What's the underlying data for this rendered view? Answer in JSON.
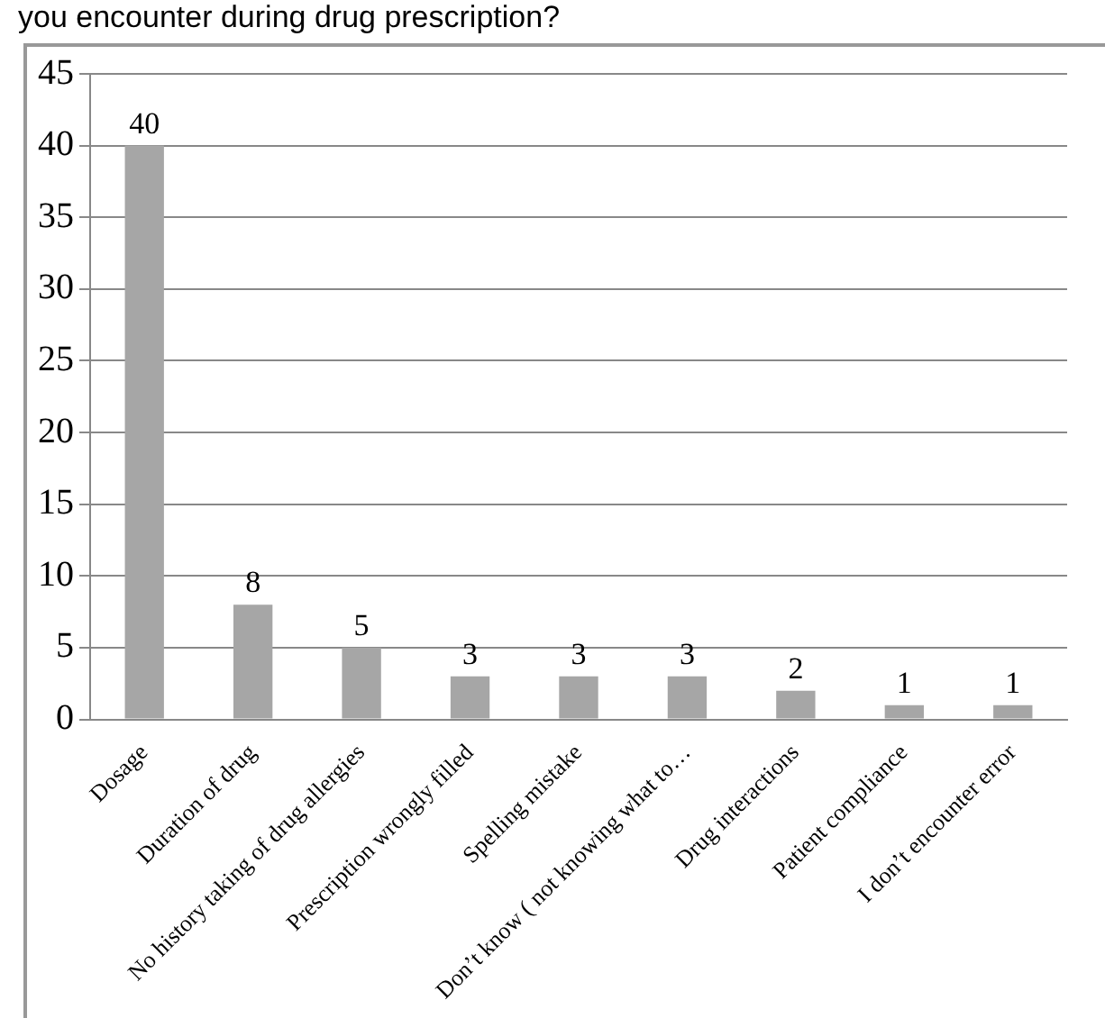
{
  "chart_data": {
    "type": "bar",
    "title": "you encounter during drug prescription?",
    "categories": [
      "Dosage",
      "Duration of drug",
      "No history taking of drug allergies",
      "Prescription wrongly filled",
      "Spelling mistake",
      "Don’t know ( not knowing what to…",
      "Drug interactions",
      "Patient compliance",
      "I don’t encounter error"
    ],
    "values": [
      40,
      8,
      5,
      3,
      3,
      3,
      2,
      1,
      1
    ],
    "color": "#a6a6a6",
    "ylim": [
      0,
      45
    ],
    "yticks": [
      0,
      5,
      10,
      15,
      20,
      25,
      30,
      35,
      40,
      45
    ],
    "grid": "y",
    "data_labels": true
  }
}
